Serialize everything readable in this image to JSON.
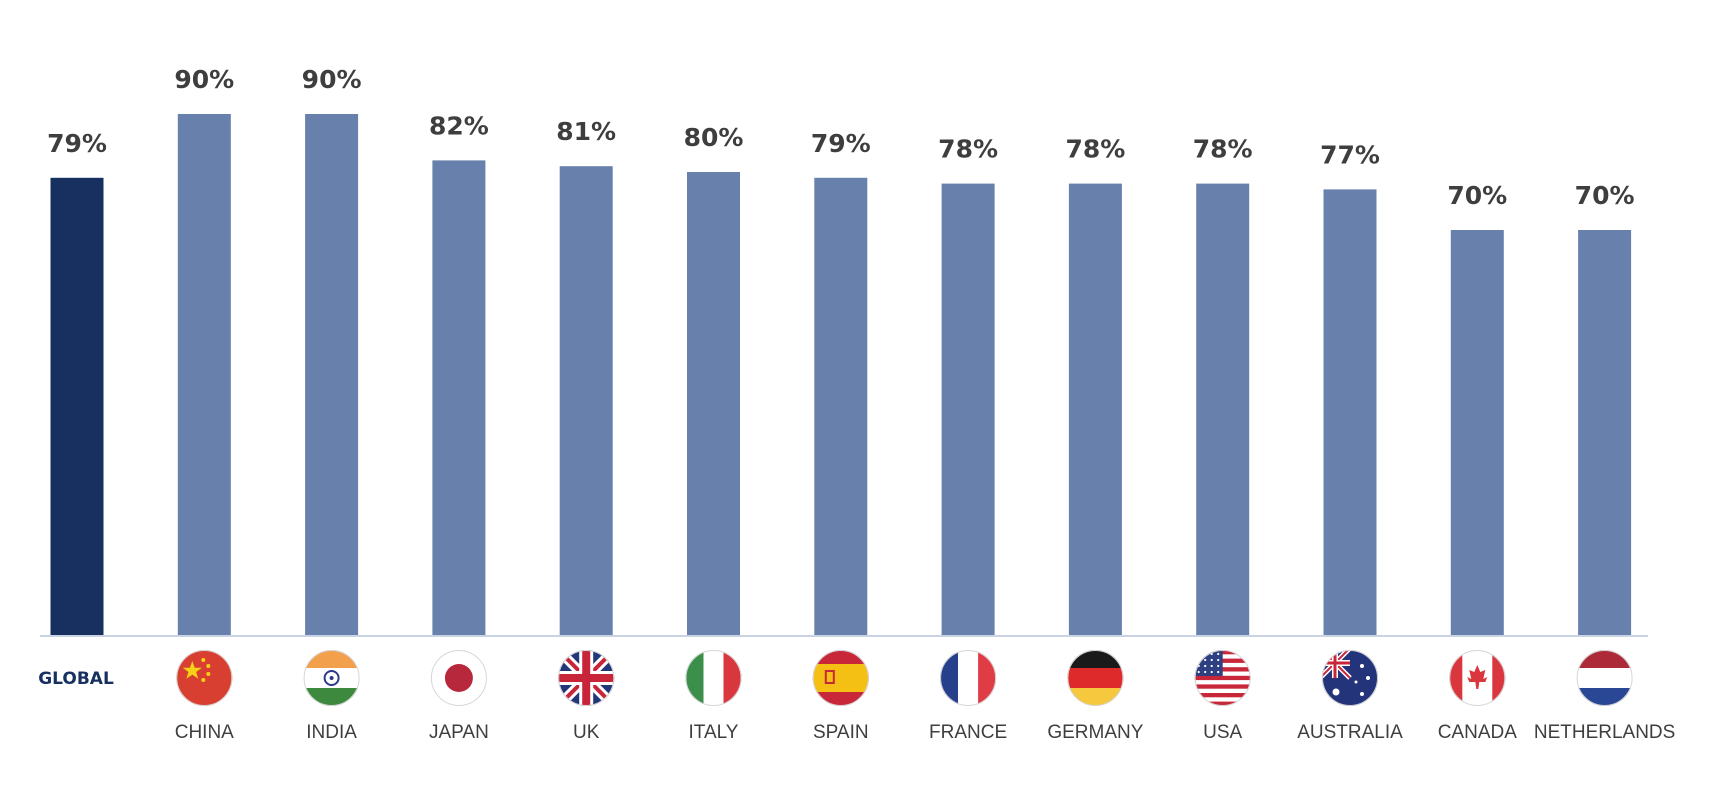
{
  "chart_data": {
    "type": "bar",
    "title": "",
    "xlabel": "",
    "ylabel": "",
    "ylim": [
      0,
      100
    ],
    "grid": false,
    "legend": "none",
    "categories": [
      "GLOBAL",
      "CHINA",
      "INDIA",
      "JAPAN",
      "UK",
      "ITALY",
      "SPAIN",
      "FRANCE",
      "GERMANY",
      "USA",
      "AUSTRALIA",
      "CANADA",
      "NETHERLANDS"
    ],
    "values": [
      79,
      90,
      90,
      82,
      81,
      80,
      79,
      78,
      78,
      78,
      77,
      70,
      70
    ],
    "value_labels": [
      "79%",
      "90%",
      "90%",
      "82%",
      "81%",
      "80%",
      "79%",
      "78%",
      "78%",
      "78%",
      "77%",
      "70%",
      "70%"
    ],
    "highlight_index": 0,
    "flags": [
      null,
      "china-flag-icon",
      "india-flag-icon",
      "japan-flag-icon",
      "uk-flag-icon",
      "italy-flag-icon",
      "spain-flag-icon",
      "france-flag-icon",
      "germany-flag-icon",
      "usa-flag-icon",
      "australia-flag-icon",
      "canada-flag-icon",
      "netherlands-flag-icon"
    ],
    "colors": {
      "highlight_bar": "#17305f",
      "bar": "#6880ac",
      "baseline": "#c9d3e3",
      "value_text": "#3e3e3e",
      "category_text": "#3e3e3e",
      "global_text": "#17305f"
    }
  }
}
